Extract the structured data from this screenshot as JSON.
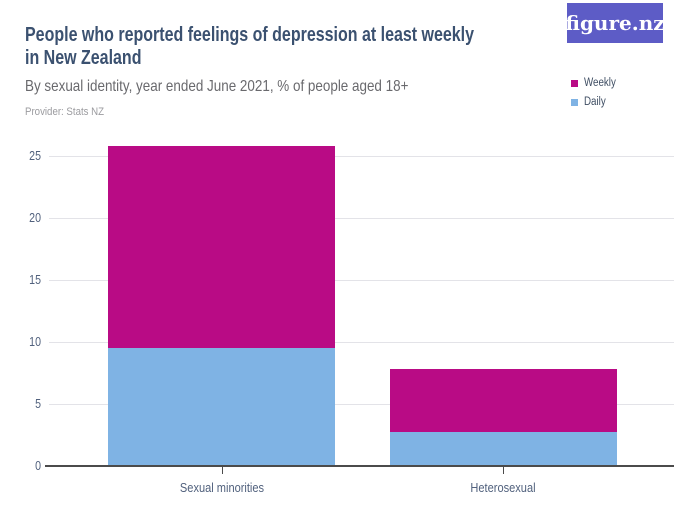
{
  "header": {
    "logo": {
      "text": "figure.nz",
      "bg": "#5d5cc6"
    },
    "title_lines": [
      "People who reported feelings of depression at least weekly",
      "in New Zealand"
    ],
    "subtitle": "By sexual identity, year ended June 2021, % of people aged 18+",
    "provider": "Provider: Stats NZ"
  },
  "chart_data": {
    "type": "bar",
    "stacked": true,
    "title": "People who reported feelings of depression at least weekly in New Zealand",
    "subtitle": "By sexual identity, year ended June 2021, % of people aged 18+",
    "categories": [
      "Sexual minorities",
      "Heterosexual"
    ],
    "series": [
      {
        "name": "Weekly",
        "color": "#b90b85",
        "values": [
          16.3,
          5.1
        ]
      },
      {
        "name": "Daily",
        "color": "#7fb3e4",
        "values": [
          9.5,
          2.7
        ]
      }
    ],
    "stack_totals": [
      25.8,
      7.8
    ],
    "xlabel": "",
    "ylabel": "% of people aged 18+",
    "ylim": [
      0,
      26
    ],
    "yticks": [
      0,
      5,
      10,
      15,
      20,
      25
    ],
    "grid": true,
    "legend_position": "right-top"
  }
}
